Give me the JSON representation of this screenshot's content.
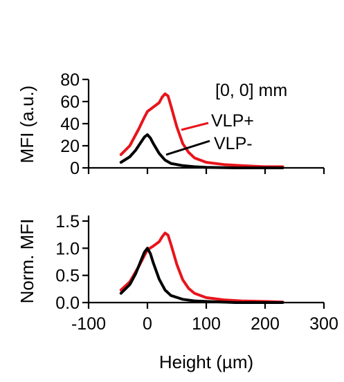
{
  "chart_data": [
    {
      "type": "line",
      "panel": "top",
      "title": "",
      "xlabel": "",
      "ylabel": "MFI (a.u.)",
      "xlim": [
        -100,
        300
      ],
      "ylim": [
        0,
        80
      ],
      "x_ticks": [
        -100,
        0,
        100,
        200,
        300
      ],
      "y_ticks": [
        0,
        20,
        40,
        60,
        80
      ],
      "y_tick_labels": [
        "0",
        "20",
        "40",
        "60",
        "80"
      ],
      "grid": false,
      "annotations": [
        "[0, 0] mm"
      ],
      "series": [
        {
          "name": "VLP+",
          "color": "#e8141b",
          "x": [
            -45,
            -30,
            -15,
            -5,
            0,
            10,
            20,
            25,
            30,
            35,
            40,
            50,
            60,
            70,
            80,
            100,
            130,
            160,
            200,
            230
          ],
          "y": [
            12,
            20,
            35,
            46,
            51,
            55,
            59,
            64,
            67,
            65,
            56,
            37,
            22,
            14,
            9,
            5,
            3,
            2,
            1,
            1
          ]
        },
        {
          "name": "VLP-",
          "color": "#000000",
          "x": [
            -45,
            -30,
            -20,
            -10,
            -5,
            0,
            5,
            10,
            20,
            30,
            40,
            60,
            80,
            100,
            150,
            230
          ],
          "y": [
            5,
            10,
            16,
            24,
            28,
            30,
            27,
            22,
            13,
            7,
            4,
            2,
            1,
            0.5,
            0,
            0
          ]
        }
      ]
    },
    {
      "type": "line",
      "panel": "bottom",
      "title": "",
      "xlabel": "Height (µm)",
      "ylabel": "Norm. MFI",
      "xlim": [
        -100,
        300
      ],
      "ylim": [
        0,
        1.5
      ],
      "x_ticks": [
        -100,
        0,
        100,
        200,
        300
      ],
      "x_tick_labels": [
        "-100",
        "0",
        "100",
        "200",
        "300"
      ],
      "y_ticks": [
        0,
        0.5,
        1.0,
        1.5
      ],
      "y_tick_labels": [
        "0.0",
        "0.5",
        "1.0",
        "1.5"
      ],
      "grid": false,
      "series": [
        {
          "name": "VLP+",
          "color": "#e8141b",
          "x": [
            -45,
            -30,
            -15,
            -5,
            0,
            10,
            20,
            25,
            30,
            35,
            40,
            50,
            60,
            70,
            80,
            100,
            130,
            160,
            200,
            230
          ],
          "y": [
            0.23,
            0.38,
            0.66,
            0.87,
            0.97,
            1.04,
            1.12,
            1.21,
            1.28,
            1.24,
            1.07,
            0.7,
            0.42,
            0.26,
            0.17,
            0.09,
            0.05,
            0.03,
            0.02,
            0.01
          ]
        },
        {
          "name": "VLP-",
          "color": "#000000",
          "x": [
            -45,
            -30,
            -20,
            -10,
            -5,
            0,
            5,
            10,
            20,
            30,
            40,
            60,
            80,
            100,
            150,
            230
          ],
          "y": [
            0.17,
            0.33,
            0.53,
            0.8,
            0.93,
            1.0,
            0.9,
            0.73,
            0.43,
            0.23,
            0.13,
            0.06,
            0.03,
            0.02,
            0.0,
            0.0
          ]
        }
      ]
    }
  ]
}
